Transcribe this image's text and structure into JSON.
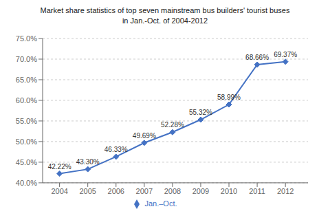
{
  "chart_data": {
    "type": "line",
    "title": "Market share statistics of top seven mainstream bus builders' tourist buses",
    "subtitle": "in Jan.-Oct. of 2004-2012",
    "x": [
      2004,
      2005,
      2006,
      2007,
      2008,
      2009,
      2010,
      2011,
      2012
    ],
    "series": [
      {
        "name": "Jan.–Oct.",
        "color": "#4472C4",
        "marker": "diamond",
        "values": [
          42.22,
          43.3,
          46.33,
          49.69,
          52.28,
          55.32,
          58.99,
          68.66,
          69.37
        ],
        "value_labels": [
          "42.22%",
          "43.30%",
          "46.33%",
          "49.69%",
          "52.28%",
          "55.32%",
          "58.99%",
          "68.66%",
          "69.37%"
        ]
      }
    ],
    "xlim": [
      2003.4,
      2012.8
    ],
    "xticks": [
      2004,
      2005,
      2006,
      2007,
      2008,
      2009,
      2010,
      2011,
      2012
    ],
    "ylim": [
      40.0,
      75.0
    ],
    "yticks": [
      {
        "value": 40.0,
        "label": "40.0%"
      },
      {
        "value": 45.0,
        "label": "45.0%"
      },
      {
        "value": 50.0,
        "label": "50.0%"
      },
      {
        "value": 55.0,
        "label": "55.0%"
      },
      {
        "value": 60.0,
        "label": "60.0%"
      },
      {
        "value": 65.0,
        "label": "65.0%"
      },
      {
        "value": 70.0,
        "label": "70.0%"
      },
      {
        "value": 75.0,
        "label": "75.0%"
      }
    ],
    "grid": true,
    "legend": "bottom",
    "data_labels": true
  }
}
